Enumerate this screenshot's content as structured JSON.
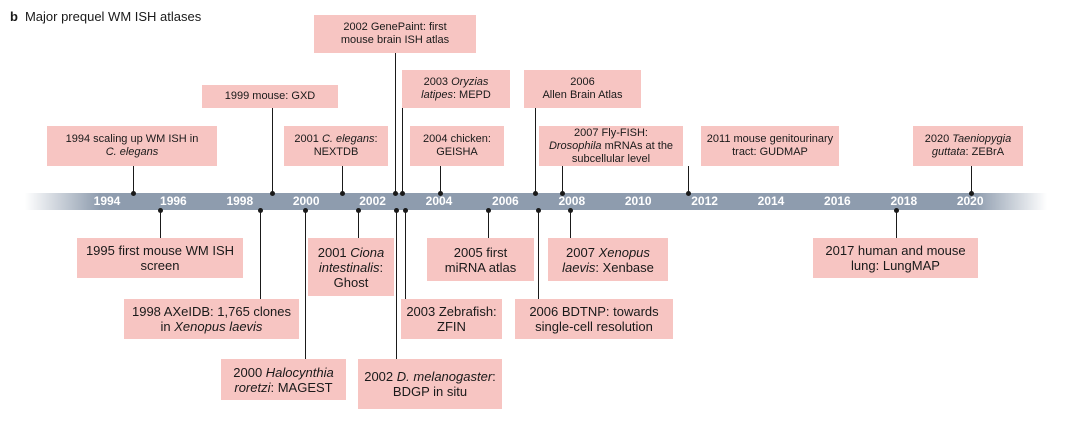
{
  "heading": {
    "panel": "b",
    "title": "Major prequel WM ISH atlases"
  },
  "axis_years": [
    "1994",
    "1996",
    "1998",
    "2000",
    "2002",
    "2004",
    "2006",
    "2008",
    "2010",
    "2012",
    "2014",
    "2016",
    "2018",
    "2020"
  ],
  "events": [
    {
      "id": "e1994",
      "year": 1994,
      "side": "above",
      "lines": [
        "1994 scaling up WM ISH in",
        "<i>C. elegans</i>"
      ]
    },
    {
      "id": "e1995",
      "year": 1995,
      "side": "below",
      "lines": [
        "1995 first mouse WM ISH",
        "screen"
      ]
    },
    {
      "id": "e1998",
      "year": 1998,
      "side": "below",
      "lines": [
        "1998 AXeIDB: 1,765 clones",
        "in <i>Xenopus laevis</i>"
      ]
    },
    {
      "id": "e1999",
      "year": 1999,
      "side": "above",
      "lines": [
        "1999 mouse: GXD"
      ]
    },
    {
      "id": "e2000",
      "year": 2000,
      "side": "below",
      "lines": [
        "2000 <i>Halocynthia</i>",
        "<i>roretzi</i>: MAGEST"
      ]
    },
    {
      "id": "e2001a",
      "year": 2001,
      "side": "above",
      "lines": [
        "2001 <i>C. elegans</i>:",
        "NEXTDB"
      ]
    },
    {
      "id": "e2001b",
      "year": 2001,
      "side": "below",
      "lines": [
        "2001 <i>Ciona</i>",
        "<i>intestinalis</i>:",
        "Ghost"
      ]
    },
    {
      "id": "e2002a",
      "year": 2002,
      "side": "above",
      "lines": [
        "2002 GenePaint: first",
        "mouse brain ISH atlas"
      ]
    },
    {
      "id": "e2002b",
      "year": 2002,
      "side": "below",
      "lines": [
        "2002 <i>D. melanogaster</i>:",
        "BDGP in situ"
      ]
    },
    {
      "id": "e2003a",
      "year": 2003,
      "side": "above",
      "lines": [
        "2003 <i>Oryzias</i>",
        "<i>latipes</i>: MEPD"
      ]
    },
    {
      "id": "e2003b",
      "year": 2003,
      "side": "below",
      "lines": [
        "2003 Zebrafish:",
        "ZFIN"
      ]
    },
    {
      "id": "e2004",
      "year": 2004,
      "side": "above",
      "lines": [
        "2004 chicken:",
        "GEISHA"
      ]
    },
    {
      "id": "e2005",
      "year": 2005,
      "side": "below",
      "lines": [
        "2005 first",
        "miRNA atlas"
      ]
    },
    {
      "id": "e2006a",
      "year": 2006,
      "side": "above",
      "lines": [
        "2006",
        "Allen Brain Atlas"
      ]
    },
    {
      "id": "e2006b",
      "year": 2006,
      "side": "below",
      "lines": [
        "2006 BDTNP: towards",
        "single-cell resolution"
      ]
    },
    {
      "id": "e2007a",
      "year": 2007,
      "side": "above",
      "lines": [
        "2007 Fly-FISH:",
        "<i>Drosophila</i> mRNAs at the",
        "subcellular level"
      ]
    },
    {
      "id": "e2007b",
      "year": 2007,
      "side": "below",
      "lines": [
        "2007 <i>Xenopus</i>",
        "<i>laevis</i>: Xenbase"
      ]
    },
    {
      "id": "e2011",
      "year": 2011,
      "side": "above",
      "lines": [
        "2011 mouse genitourinary",
        "tract: GUDMAP"
      ]
    },
    {
      "id": "e2017",
      "year": 2017,
      "side": "below",
      "lines": [
        "2017 human and mouse",
        "lung: LungMAP"
      ]
    },
    {
      "id": "e2020",
      "year": 2020,
      "side": "above",
      "lines": [
        "2020 <i>Taeniopygia</i>",
        "<i>guttata</i>: ZEBrA"
      ]
    }
  ]
}
